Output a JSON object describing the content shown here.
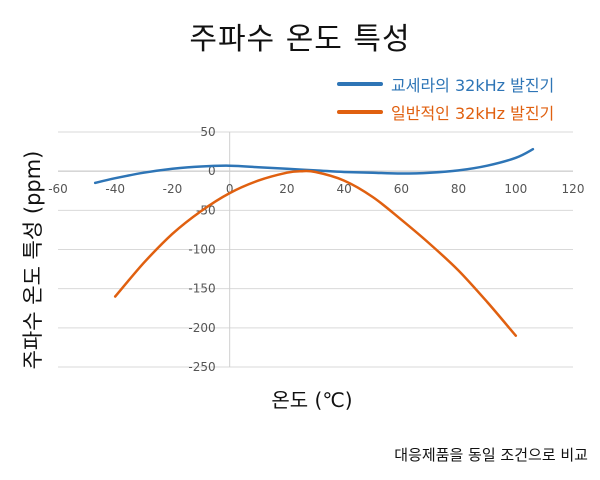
{
  "chart_data": {
    "type": "line",
    "title": "주파수 온도 특성",
    "xlabel": "온도 (℃)",
    "ylabel": "주파수 온도 특성 (ppm)",
    "xlim": [
      -60,
      120
    ],
    "ylim": [
      -250,
      50
    ],
    "x_ticks": [
      -60,
      -40,
      -20,
      0,
      20,
      40,
      60,
      80,
      100,
      120
    ],
    "y_ticks": [
      50,
      0,
      -50,
      -100,
      -150,
      -200,
      -250
    ],
    "grid": true,
    "legend_position": "top-right",
    "note": "대응제품을 동일 조건으로 비교",
    "series": [
      {
        "name": "교세라의 32kHz 발진기",
        "color": "#2e75b6",
        "points": [
          [
            -47,
            -15
          ],
          [
            -40,
            -9
          ],
          [
            -30,
            -2
          ],
          [
            -20,
            3
          ],
          [
            -10,
            6
          ],
          [
            0,
            7
          ],
          [
            10,
            5
          ],
          [
            20,
            3
          ],
          [
            30,
            1
          ],
          [
            40,
            -1
          ],
          [
            50,
            -2
          ],
          [
            60,
            -3
          ],
          [
            70,
            -2
          ],
          [
            80,
            1
          ],
          [
            90,
            7
          ],
          [
            100,
            17
          ],
          [
            106,
            28
          ]
        ]
      },
      {
        "name": "일반적인 32kHz 발진기",
        "color": "#e06010",
        "points": [
          [
            -40,
            -160
          ],
          [
            -30,
            -117
          ],
          [
            -20,
            -80
          ],
          [
            -10,
            -51
          ],
          [
            0,
            -28
          ],
          [
            10,
            -12
          ],
          [
            20,
            -2
          ],
          [
            25,
            0
          ],
          [
            30,
            -1
          ],
          [
            40,
            -12
          ],
          [
            50,
            -33
          ],
          [
            60,
            -62
          ],
          [
            70,
            -93
          ],
          [
            80,
            -127
          ],
          [
            90,
            -167
          ],
          [
            100,
            -210
          ]
        ]
      }
    ]
  }
}
